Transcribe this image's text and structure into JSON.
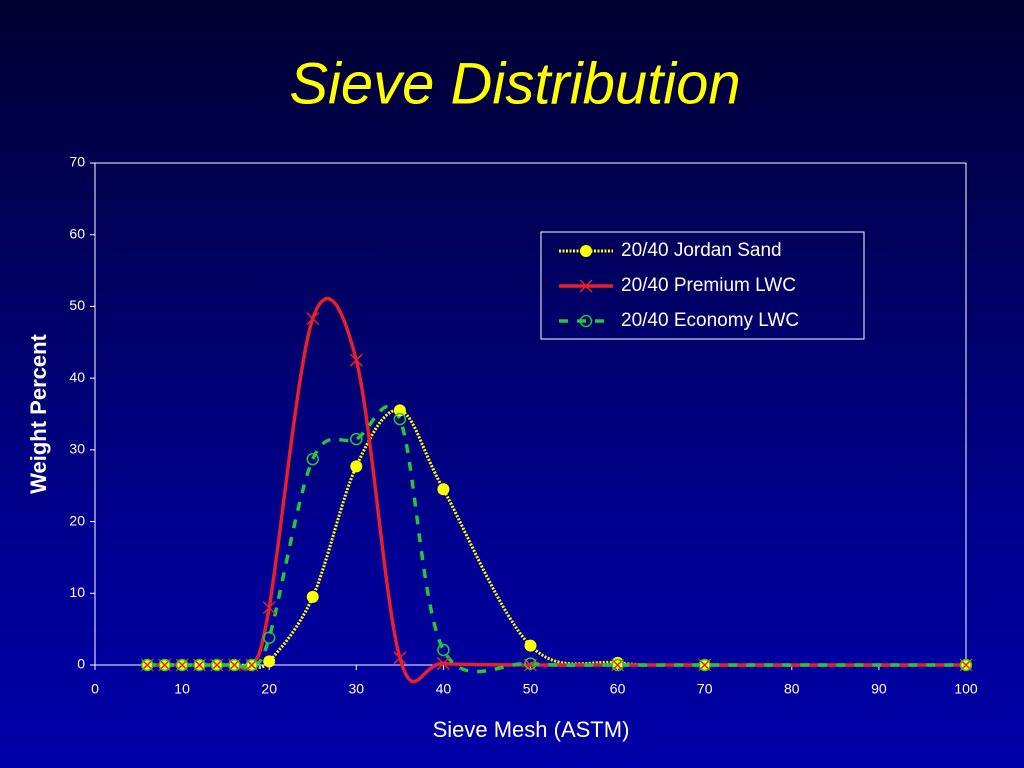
{
  "chart_data": {
    "type": "line",
    "title": "Sieve Distribution",
    "x_label": "Sieve Mesh (ASTM)",
    "y_label": "Weight Percent",
    "x": [
      6,
      8,
      10,
      12,
      14,
      16,
      18,
      20,
      25,
      30,
      35,
      40,
      50,
      60,
      70,
      100
    ],
    "series": [
      {
        "name": "20/40 Jordan Sand",
        "color": "#ffff00",
        "marker": "dot",
        "values": [
          0,
          0,
          0,
          0,
          0,
          0,
          0,
          0.5,
          9.5,
          27.7,
          35.5,
          24.5,
          2.7,
          0.3,
          0,
          0
        ]
      },
      {
        "name": "20/40 Premium LWC",
        "color": "#e8202a",
        "marker": "cross",
        "values": [
          0,
          0,
          0,
          0,
          0,
          0,
          0,
          8,
          48.3,
          42.5,
          1,
          0.2,
          0,
          0,
          0,
          0
        ]
      },
      {
        "name": "20/40 Economy LWC",
        "color": "#22c83c",
        "marker": "ring",
        "values": [
          0,
          0,
          0,
          0,
          0,
          0,
          0,
          3.8,
          28.7,
          31.5,
          34.3,
          2.1,
          0.2,
          0,
          0,
          0
        ]
      }
    ],
    "xlim": [
      0,
      100
    ],
    "xticks": [
      0,
      10,
      20,
      30,
      40,
      50,
      60,
      70,
      80,
      90,
      100
    ],
    "ylim": [
      0,
      70
    ],
    "yticks": [
      0,
      10,
      20,
      30,
      40,
      50,
      60,
      70
    ],
    "grid": false,
    "legend": "upper right"
  }
}
